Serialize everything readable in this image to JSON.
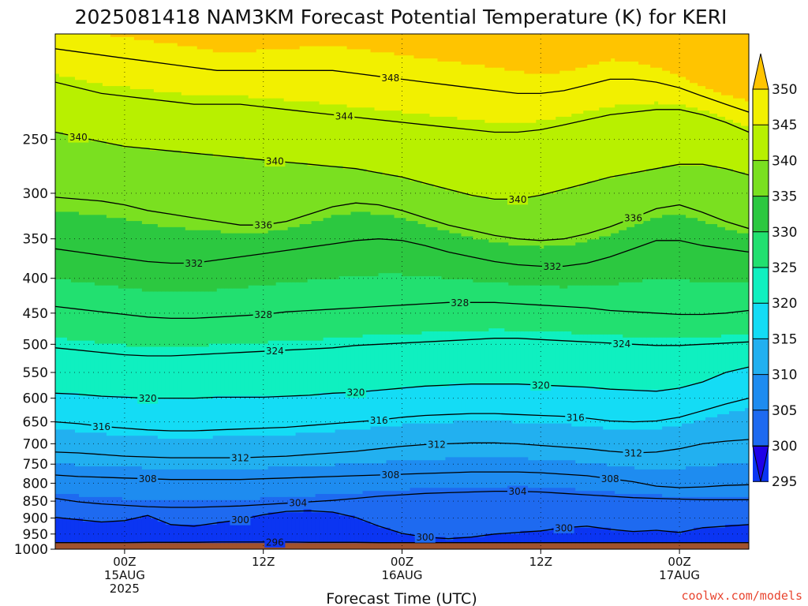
{
  "chart_data": {
    "type": "heatmap",
    "title": "2025081418 NAM3KM Forecast Potential Temperature (K) for KERI",
    "xlabel": "Forecast Time (UTC)",
    "ylabel": "",
    "y_scale": "log",
    "ylim": [
      1000,
      175
    ],
    "y_ticks": [
      250,
      300,
      350,
      400,
      450,
      500,
      550,
      600,
      650,
      700,
      750,
      800,
      850,
      900,
      950,
      1000
    ],
    "x_ticks": [
      {
        "hours": 6,
        "lines": [
          "00Z",
          "15AUG",
          "2025"
        ]
      },
      {
        "hours": 18,
        "lines": [
          "12Z"
        ]
      },
      {
        "hours": 30,
        "lines": [
          "00Z",
          "16AUG"
        ]
      },
      {
        "hours": 42,
        "lines": [
          "12Z"
        ]
      },
      {
        "hours": 54,
        "lines": [
          "00Z",
          "17AUG"
        ]
      }
    ],
    "xlim_hours": [
      0,
      60
    ],
    "colorbar": {
      "ticks": [
        295,
        300,
        305,
        310,
        315,
        320,
        325,
        330,
        335,
        340,
        345,
        350
      ],
      "colors": [
        "#1f00e8",
        "#0b35f2",
        "#1e6af0",
        "#1e8cf0",
        "#22b0f0",
        "#14dcf5",
        "#0ff0c0",
        "#22e070",
        "#2cc840",
        "#7ae020",
        "#b8f000",
        "#f2f000",
        "#ffc400"
      ],
      "min": 295,
      "max": 350
    },
    "ground_color": "#a0522d",
    "ground_pressure_hPa": 975,
    "isentropes": [
      {
        "theta": 296,
        "label": "296",
        "pressures": [
          978,
          978,
          978,
          978,
          977,
          977,
          977,
          976,
          976,
          976,
          976,
          977,
          977,
          977,
          978,
          978,
          978,
          978,
          978,
          978,
          978,
          978,
          978,
          978,
          978,
          978,
          978,
          978,
          978,
          978,
          978
        ]
      },
      {
        "theta": 300,
        "label": "300",
        "pressures": [
          898,
          905,
          912,
          908,
          892,
          920,
          925,
          915,
          905,
          890,
          880,
          878,
          882,
          898,
          925,
          948,
          960,
          965,
          960,
          950,
          945,
          940,
          930,
          925,
          935,
          942,
          938,
          945,
          930,
          925,
          920
        ]
      },
      {
        "theta": 304,
        "label": "304",
        "pressures": [
          842,
          852,
          858,
          862,
          866,
          868,
          868,
          866,
          864,
          860,
          856,
          852,
          848,
          842,
          836,
          832,
          828,
          826,
          824,
          822,
          822,
          824,
          828,
          832,
          836,
          840,
          842,
          844,
          846,
          846,
          846
        ]
      },
      {
        "theta": 308,
        "label": "308",
        "pressures": [
          778,
          782,
          784,
          786,
          788,
          790,
          790,
          790,
          790,
          788,
          786,
          784,
          782,
          780,
          778,
          776,
          774,
          772,
          770,
          770,
          770,
          772,
          776,
          780,
          788,
          796,
          808,
          812,
          810,
          806,
          804
        ]
      },
      {
        "theta": 312,
        "label": "312",
        "pressures": [
          720,
          722,
          726,
          730,
          732,
          734,
          734,
          734,
          734,
          732,
          730,
          726,
          722,
          718,
          712,
          706,
          702,
          700,
          698,
          698,
          700,
          704,
          708,
          712,
          718,
          722,
          720,
          712,
          700,
          694,
          690
        ]
      },
      {
        "theta": 316,
        "label": "316",
        "pressures": [
          650,
          654,
          660,
          664,
          668,
          670,
          670,
          668,
          666,
          664,
          662,
          658,
          654,
          650,
          646,
          640,
          636,
          634,
          632,
          632,
          634,
          636,
          638,
          642,
          648,
          650,
          648,
          640,
          626,
          612,
          600
        ]
      },
      {
        "theta": 320,
        "label": "320",
        "pressures": [
          590,
          592,
          596,
          598,
          600,
          600,
          600,
          598,
          598,
          598,
          596,
          594,
          590,
          588,
          584,
          580,
          576,
          574,
          572,
          572,
          572,
          574,
          576,
          578,
          582,
          584,
          586,
          580,
          568,
          550,
          540
        ]
      },
      {
        "theta": 324,
        "label": "324",
        "pressures": [
          506,
          510,
          514,
          518,
          520,
          520,
          518,
          516,
          514,
          512,
          510,
          508,
          506,
          502,
          500,
          498,
          496,
          494,
          492,
          490,
          490,
          492,
          494,
          496,
          498,
          500,
          502,
          502,
          500,
          498,
          496
        ]
      },
      {
        "theta": 328,
        "label": "328",
        "pressures": [
          440,
          444,
          448,
          452,
          456,
          458,
          458,
          456,
          454,
          452,
          448,
          446,
          444,
          442,
          440,
          438,
          436,
          434,
          434,
          434,
          436,
          438,
          440,
          442,
          446,
          448,
          450,
          452,
          452,
          450,
          446
        ]
      },
      {
        "theta": 332,
        "label": "332",
        "pressures": [
          362,
          366,
          370,
          374,
          378,
          380,
          380,
          376,
          372,
          368,
          364,
          360,
          356,
          352,
          350,
          352,
          358,
          366,
          372,
          378,
          382,
          384,
          384,
          380,
          372,
          362,
          352,
          352,
          358,
          362,
          366
        ]
      },
      {
        "theta": 336,
        "label": "336",
        "pressures": [
          304,
          306,
          308,
          312,
          318,
          322,
          326,
          330,
          334,
          334,
          330,
          322,
          314,
          310,
          312,
          318,
          326,
          334,
          340,
          346,
          350,
          352,
          350,
          344,
          336,
          326,
          316,
          312,
          320,
          330,
          338
        ]
      },
      {
        "theta": 340,
        "label": "340",
        "pressures": [
          244,
          248,
          252,
          256,
          258,
          260,
          262,
          264,
          266,
          268,
          270,
          272,
          274,
          276,
          280,
          284,
          290,
          296,
          302,
          306,
          306,
          302,
          296,
          290,
          284,
          280,
          276,
          272,
          272,
          276,
          282
        ]
      },
      {
        "theta": 344,
        "label": "344",
        "pressures": [
          206,
          210,
          214,
          216,
          218,
          220,
          222,
          222,
          222,
          224,
          226,
          228,
          230,
          232,
          234,
          236,
          238,
          240,
          242,
          244,
          244,
          242,
          238,
          234,
          230,
          228,
          226,
          226,
          230,
          236,
          244
        ]
      },
      {
        "theta": 348,
        "label": "348",
        "pressures": [
          184,
          186,
          188,
          190,
          192,
          194,
          196,
          198,
          198,
          198,
          198,
          198,
          198,
          200,
          202,
          204,
          206,
          208,
          210,
          212,
          214,
          214,
          212,
          208,
          204,
          204,
          206,
          210,
          216,
          222,
          228
        ]
      }
    ],
    "contour_labels": [
      {
        "text": "340",
        "hour": 2,
        "theta": 340
      },
      {
        "text": "344",
        "hour": 25,
        "theta": 344
      },
      {
        "text": "348",
        "hour": 29,
        "theta": 348
      },
      {
        "text": "340",
        "hour": 19,
        "theta": 340
      },
      {
        "text": "340",
        "hour": 40,
        "theta": 340
      },
      {
        "text": "336",
        "hour": 18,
        "theta": 336
      },
      {
        "text": "336",
        "hour": 50,
        "theta": 336
      },
      {
        "text": "332",
        "hour": 12,
        "theta": 332
      },
      {
        "text": "332",
        "hour": 43,
        "theta": 332
      },
      {
        "text": "328",
        "hour": 18,
        "theta": 328
      },
      {
        "text": "328",
        "hour": 35,
        "theta": 328
      },
      {
        "text": "324",
        "hour": 19,
        "theta": 324
      },
      {
        "text": "324",
        "hour": 49,
        "theta": 324
      },
      {
        "text": "320",
        "hour": 8,
        "theta": 320
      },
      {
        "text": "320",
        "hour": 26,
        "theta": 320
      },
      {
        "text": "320",
        "hour": 42,
        "theta": 320
      },
      {
        "text": "316",
        "hour": 4,
        "theta": 316
      },
      {
        "text": "316",
        "hour": 28,
        "theta": 316
      },
      {
        "text": "316",
        "hour": 45,
        "theta": 316
      },
      {
        "text": "312",
        "hour": 16,
        "theta": 312
      },
      {
        "text": "312",
        "hour": 33,
        "theta": 312
      },
      {
        "text": "312",
        "hour": 50,
        "theta": 312
      },
      {
        "text": "308",
        "hour": 8,
        "theta": 308
      },
      {
        "text": "308",
        "hour": 29,
        "theta": 308
      },
      {
        "text": "308",
        "hour": 48,
        "theta": 308
      },
      {
        "text": "304",
        "hour": 21,
        "theta": 304
      },
      {
        "text": "304",
        "hour": 40,
        "theta": 304
      },
      {
        "text": "300",
        "hour": 16,
        "theta": 300
      },
      {
        "text": "300",
        "hour": 32,
        "theta": 300
      },
      {
        "text": "300",
        "hour": 44,
        "theta": 300
      },
      {
        "text": "296",
        "hour": 19,
        "theta": 296
      }
    ]
  },
  "credit": "coolwx.com/models"
}
